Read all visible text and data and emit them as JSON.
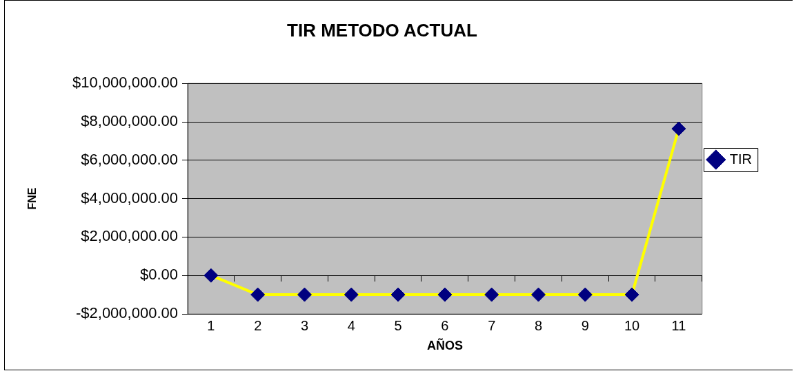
{
  "chart_data": {
    "type": "line",
    "title": "TIR METODO ACTUAL",
    "xlabel": "AÑOS",
    "ylabel": "FNE",
    "categories": [
      "1",
      "2",
      "3",
      "4",
      "5",
      "6",
      "7",
      "8",
      "9",
      "10",
      "11"
    ],
    "series": [
      {
        "name": "TIR",
        "color": "#ffff00",
        "colors": [
          "#000080",
          "#000080",
          "#000080",
          "#000080",
          "#000080",
          "#000080",
          "#000080",
          "#000080",
          "#000080",
          "#000080",
          "#000080"
        ],
        "values": [
          0,
          -1000000,
          -1000000,
          -1000000,
          -1000000,
          -1000000,
          -1000000,
          -1000000,
          -1000000,
          -1000000,
          7640000
        ]
      }
    ],
    "ylim": [
      -2000000,
      10000000
    ],
    "yticks": [
      {
        "value": -2000000,
        "label": "-$2,000,000.00"
      },
      {
        "value": 0,
        "label": "$0.00"
      },
      {
        "value": 2000000,
        "label": "$2,000,000.00"
      },
      {
        "value": 4000000,
        "label": "$4,000,000.00"
      },
      {
        "value": 6000000,
        "label": "$6,000,000.00"
      },
      {
        "value": 8000000,
        "label": "$8,000,000.00"
      },
      {
        "value": 10000000,
        "label": "$10,000,000.00"
      }
    ],
    "grid": "y",
    "legend": "right",
    "marker": "diamond",
    "line_style": "solid"
  }
}
